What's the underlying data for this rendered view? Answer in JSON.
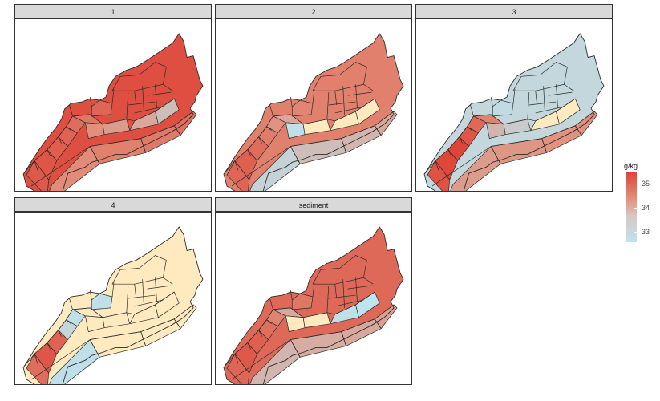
{
  "panels": [
    {
      "label": "1",
      "shades": [
        0.86,
        0.88,
        0.83,
        0.8,
        0.74,
        0.68,
        0.52,
        0.46,
        0.4,
        0.3,
        0.55,
        0.62,
        0.66,
        0.72,
        0.78,
        0.92
      ]
    },
    {
      "label": "2",
      "shades": [
        0.78,
        0.82,
        0.74,
        0.64,
        0.5,
        0.4,
        0.14,
        0.08,
        0.04,
        0.03,
        0.2,
        0.3,
        0.34,
        0.4,
        0.58,
        0.62
      ]
    },
    {
      "label": "3",
      "shades": [
        0.9,
        0.96,
        0.98,
        0.88,
        0.76,
        0.6,
        0.34,
        0.24,
        0.08,
        0.06,
        0.46,
        0.48,
        0.5,
        0.52,
        0.16,
        0.18
      ]
    },
    {
      "label": "4",
      "shades": [
        0.74,
        0.88,
        0.8,
        0.18,
        0.14,
        0.1,
        0.1,
        0.1,
        0.1,
        0.1,
        0.14,
        0.1,
        0.1,
        0.1,
        0.14,
        0.1
      ]
    },
    {
      "label": "sediment",
      "shades": [
        0.78,
        0.86,
        0.82,
        0.72,
        0.6,
        0.4,
        0.02,
        0.06,
        0.14,
        0.12,
        0.34,
        0.38,
        0.4,
        0.44,
        0.68,
        0.76
      ]
    }
  ],
  "legend": {
    "title": "g/kg",
    "ticks": [
      {
        "label": "35",
        "value": 35
      },
      {
        "label": "34",
        "value": 34
      },
      {
        "label": "33",
        "value": 33
      }
    ],
    "min": 32.8,
    "max": 35.8,
    "colors": {
      "low": "#bde4ef",
      "mid": "#e1937f",
      "high": "#de4235",
      "zero": "#ffeac0"
    }
  }
}
